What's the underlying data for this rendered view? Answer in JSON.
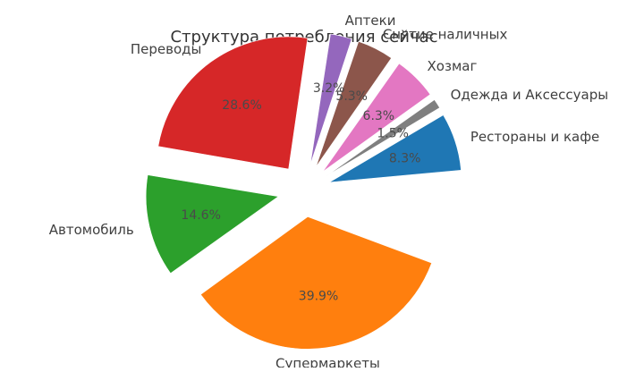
{
  "chart_data": {
    "type": "pie",
    "title": "Структура потребления сейчас",
    "slices": [
      {
        "label": "Рестораны и кафе",
        "value": 8.3,
        "value_label": "8.3%",
        "color": "#1f77b4"
      },
      {
        "label": "Одежда и Аксессуары",
        "value": 1.5,
        "value_label": "1.5%",
        "color": "#7f7f7f"
      },
      {
        "label": "Хозмаг",
        "value": 6.3,
        "value_label": "6.3%",
        "color": "#e377c2"
      },
      {
        "label": "Снятие наличных",
        "value": 5.3,
        "value_label": "5.3%",
        "color": "#8c564b"
      },
      {
        "label": "Аптеки",
        "value": 3.2,
        "value_label": "3.2%",
        "color": "#9467bd"
      },
      {
        "label": "Переводы",
        "value": 28.6,
        "value_label": "28.6%",
        "color": "#d62728"
      },
      {
        "label": "Автомобиль",
        "value": 14.6,
        "value_label": "14.6%",
        "color": "#2ca02c"
      },
      {
        "label": "Супермаркеты",
        "value": 39.9,
        "value_label": "39.9%",
        "color": "#ff7f0e"
      }
    ],
    "has_hidden_slice": true
  }
}
